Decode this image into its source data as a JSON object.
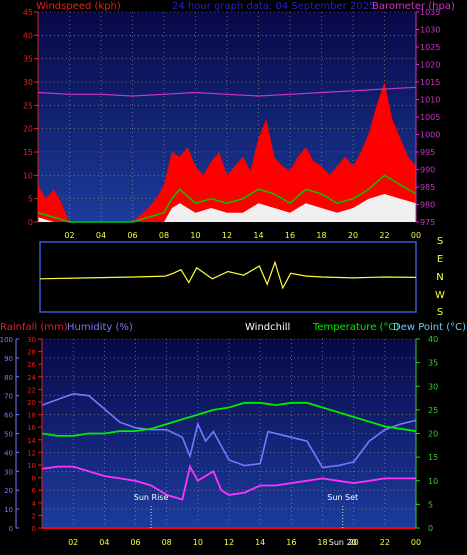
{
  "colors": {
    "bg": "#000000",
    "panel_top": "#0a0a5a",
    "panel_bottom": "#1a3a9a",
    "grid": "#9a9a9a",
    "wind_gust": "#ff0000",
    "wind_avg": "#00cc00",
    "wind_min": "#f0f0f0",
    "barometer": "#cc33cc",
    "direction": "#ffff33",
    "humidity": "#7777ff",
    "windchill": "#ff33ff",
    "temperature": "#00ee00",
    "dewpoint": "#66ccff",
    "rainfall": "#ff0000",
    "left_axis": "#dd2222",
    "right_axis": "#cc33cc",
    "right_axis_bottom": "#33cc33",
    "x_tick": "#ffff33"
  },
  "header": {
    "windspeed_label": "Windspeed (kph)",
    "title": "24 hour graph data: 04 September 2025",
    "barometer_label": "Barometer (hpa)"
  },
  "bottom_header": {
    "rainfall_label": "Rainfall (mm)",
    "humidity_label": "Humidity (%)",
    "windchill_label": "Windchill",
    "temperature_label": "Temperature (°C)",
    "dewpoint_label": "Dew Point (°C)"
  },
  "direction_labels": [
    "S",
    "E",
    "N",
    "W",
    "S"
  ],
  "sun": {
    "rise_label": "Sun Rise",
    "set_label": "Sun Set",
    "midday_label": "Sun 20"
  },
  "chart_data": [
    {
      "type": "line",
      "title": "24 hour graph data: 04 September 2025",
      "x_ticks": [
        "02",
        "04",
        "06",
        "08",
        "10",
        "12",
        "14",
        "16",
        "18",
        "20",
        "22",
        "00"
      ],
      "xlim": [
        0,
        24
      ],
      "left_axis": {
        "label": "Windspeed (kph)",
        "ticks": [
          "0",
          "5",
          "10",
          "15",
          "20",
          "25",
          "30",
          "35",
          "40",
          "45"
        ],
        "range": [
          0,
          45
        ]
      },
      "right_axis": {
        "label": "Barometer (hpa)",
        "ticks": [
          "975",
          "980",
          "985",
          "990",
          "995",
          "1000",
          "1005",
          "1010",
          "1015",
          "1020",
          "1025",
          "1030",
          "1035"
        ],
        "range": [
          975,
          1035
        ]
      },
      "grid": true,
      "barometer": {
        "x": [
          0,
          2,
          4,
          6,
          8,
          10,
          12,
          14,
          16,
          18,
          20,
          22,
          24
        ],
        "y": [
          1012,
          1011.5,
          1011.5,
          1011,
          1011.5,
          1012,
          1011.5,
          1011,
          1011.5,
          1012,
          1012.5,
          1013,
          1013.5
        ]
      },
      "wind_gust": {
        "x": [
          0,
          0.5,
          1,
          1.5,
          2,
          4,
          6,
          7,
          7.5,
          8,
          8.5,
          9,
          9.5,
          10,
          10.5,
          11,
          11.5,
          12,
          12.5,
          13,
          13.5,
          14,
          14.5,
          15,
          15.5,
          16,
          16.5,
          17,
          17.5,
          18,
          18.5,
          19,
          19.5,
          20,
          20.5,
          21,
          21.5,
          22,
          22.5,
          23,
          23.5,
          24
        ],
        "y": [
          8,
          5,
          7,
          4,
          0,
          0,
          0,
          3,
          5,
          8,
          15,
          14,
          16,
          12,
          10,
          13,
          15,
          10,
          12,
          14,
          11,
          18,
          22,
          14,
          12,
          11,
          14,
          16,
          13,
          12,
          10,
          12,
          14,
          12,
          15,
          19,
          25,
          30,
          22,
          18,
          14,
          12
        ]
      },
      "wind_avg": {
        "x": [
          0,
          1,
          2,
          4,
          6,
          7,
          8,
          8.5,
          9,
          10,
          11,
          12,
          13,
          14,
          15,
          16,
          17,
          18,
          19,
          20,
          21,
          22,
          23,
          24
        ],
        "y": [
          2,
          1,
          0,
          0,
          0,
          1,
          2,
          5,
          7,
          4,
          5,
          4,
          5,
          7,
          6,
          4,
          7,
          6,
          4,
          5,
          7,
          10,
          8,
          6
        ]
      },
      "wind_min": {
        "x": [
          0,
          1,
          2,
          4,
          6,
          8,
          8.5,
          9,
          10,
          11,
          12,
          13,
          14,
          15,
          16,
          17,
          18,
          19,
          20,
          21,
          22,
          23,
          24
        ],
        "y": [
          1,
          0,
          0,
          0,
          0,
          0,
          3,
          4,
          2,
          3,
          2,
          2,
          4,
          3,
          2,
          4,
          3,
          2,
          3,
          5,
          6,
          5,
          4
        ]
      }
    },
    {
      "type": "line",
      "title": "Wind Direction",
      "direction_axis": [
        "S",
        "E",
        "N",
        "W",
        "S"
      ],
      "x": [
        0,
        3,
        6,
        8,
        8.5,
        9,
        9.5,
        10,
        11,
        12,
        13,
        14,
        14.5,
        15,
        15.5,
        16,
        17,
        18,
        20,
        22,
        24
      ],
      "y": [
        170,
        175,
        180,
        185,
        200,
        220,
        150,
        230,
        170,
        210,
        190,
        240,
        140,
        260,
        120,
        200,
        185,
        180,
        175,
        180,
        178
      ]
    },
    {
      "type": "line",
      "title": "Temperature, Humidity, Rainfall",
      "x_ticks": [
        "02",
        "04",
        "06",
        "08",
        "10",
        "12",
        "14",
        "16",
        "18",
        "20",
        "22",
        "00"
      ],
      "xlim": [
        0,
        24
      ],
      "left_axis_rain": {
        "label": "Rainfall (mm)",
        "ticks": [
          "0",
          "2",
          "4",
          "6",
          "8",
          "10",
          "12",
          "14",
          "16",
          "18",
          "20",
          "22",
          "24",
          "26",
          "28",
          "30"
        ],
        "range": [
          0,
          30
        ]
      },
      "left_axis_humidity": {
        "label": "Humidity (%)",
        "ticks": [
          "0",
          "10",
          "20",
          "30",
          "40",
          "50",
          "60",
          "70",
          "80",
          "90",
          "100"
        ],
        "range": [
          0,
          100
        ]
      },
      "right_axis": {
        "label": "Temperature (°C)",
        "ticks": [
          "0",
          "5",
          "10",
          "15",
          "20",
          "25",
          "30",
          "35",
          "40"
        ],
        "range": [
          0,
          40
        ]
      },
      "grid": true,
      "humidity": {
        "x": [
          0,
          1,
          2,
          3,
          4,
          5,
          6,
          7,
          8,
          9,
          9.5,
          10,
          10.5,
          11,
          12,
          13,
          14,
          14.5,
          15,
          16,
          17,
          18,
          19,
          20,
          21,
          22,
          23,
          24
        ],
        "y": [
          65,
          68,
          71,
          70,
          63,
          56,
          53,
          52,
          52,
          48,
          38,
          55,
          46,
          51,
          36,
          33,
          34,
          51,
          50,
          48,
          46,
          32,
          33,
          35,
          46,
          52,
          55,
          57
        ]
      },
      "temperature": {
        "x": [
          0,
          1,
          2,
          3,
          4,
          5,
          6,
          7,
          8,
          9,
          10,
          11,
          12,
          13,
          14,
          15,
          16,
          17,
          18,
          19,
          20,
          21,
          22,
          23,
          24
        ],
        "y": [
          20,
          19.5,
          19.5,
          20,
          20,
          20.5,
          20.5,
          21,
          22,
          23,
          24,
          25,
          25.5,
          26.5,
          26.5,
          26,
          26.5,
          26.5,
          25.5,
          24.5,
          23.5,
          22.5,
          21.5,
          21,
          20.5
        ]
      },
      "windchill": {
        "x": [
          0,
          1,
          2,
          3,
          4,
          5,
          6,
          7,
          8,
          9,
          9.5,
          10,
          10.5,
          11,
          11.5,
          12,
          13,
          14,
          15,
          16,
          17,
          18,
          19,
          20,
          21,
          22,
          23,
          24
        ],
        "y": [
          12.5,
          13,
          13,
          12,
          11,
          10.5,
          10,
          9,
          7,
          6,
          13,
          10,
          11,
          12,
          8,
          7,
          7.5,
          9,
          9,
          9.5,
          10,
          10.5,
          10,
          9.5,
          10,
          10.5,
          10.5,
          10.5
        ]
      },
      "rainfall": {
        "x": [
          0,
          24
        ],
        "y": [
          0,
          0
        ]
      },
      "sun_rise_hour": 7,
      "sun_set_hour": 19.3
    }
  ]
}
